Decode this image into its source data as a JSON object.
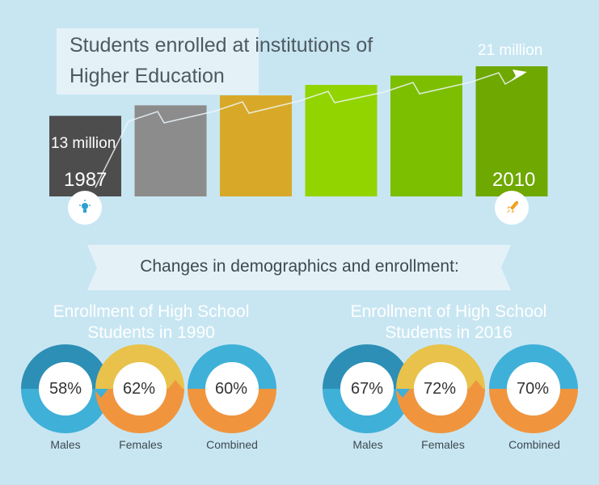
{
  "chart_data": [
    {
      "type": "bar",
      "title": [
        "Students enrolled at institutions of",
        "Higher Education"
      ],
      "start_label": "13 million",
      "end_label": "21 million",
      "start_year": "1987",
      "end_year": "2010",
      "values": [
        13,
        14.7,
        16.3,
        18,
        19.5,
        21
      ],
      "ylim": [
        0,
        21
      ],
      "bar_colors": [
        "#4d4d4d",
        "#8c8c8c",
        "#d8a928",
        "#92d400",
        "#7cbe00",
        "#6ea800"
      ],
      "icons": [
        "lightbulb-icon",
        "rocket-icon"
      ]
    },
    {
      "type": "donut",
      "title": [
        "Enrollment of High School",
        "Students  in 1990"
      ],
      "categories": [
        "Males",
        "Females",
        "Combined"
      ],
      "values": [
        58,
        62,
        60
      ],
      "labels": [
        "58%",
        "62%",
        "60%"
      ]
    },
    {
      "type": "donut",
      "title": [
        "Enrollment of High School",
        "Students  in 2016"
      ],
      "categories": [
        "Males",
        "Females",
        "Combined"
      ],
      "values": [
        67,
        72,
        70
      ],
      "labels": [
        "67%",
        "72%",
        "70%"
      ]
    }
  ],
  "banner": "Changes in demographics and enrollment:",
  "colors": {
    "background": "#c8e6f2",
    "ring_blue": "#3fb0d8",
    "ring_dark_blue": "#2d8fb5",
    "ring_yellow": "#e8c24a",
    "ring_orange": "#f0953e"
  }
}
